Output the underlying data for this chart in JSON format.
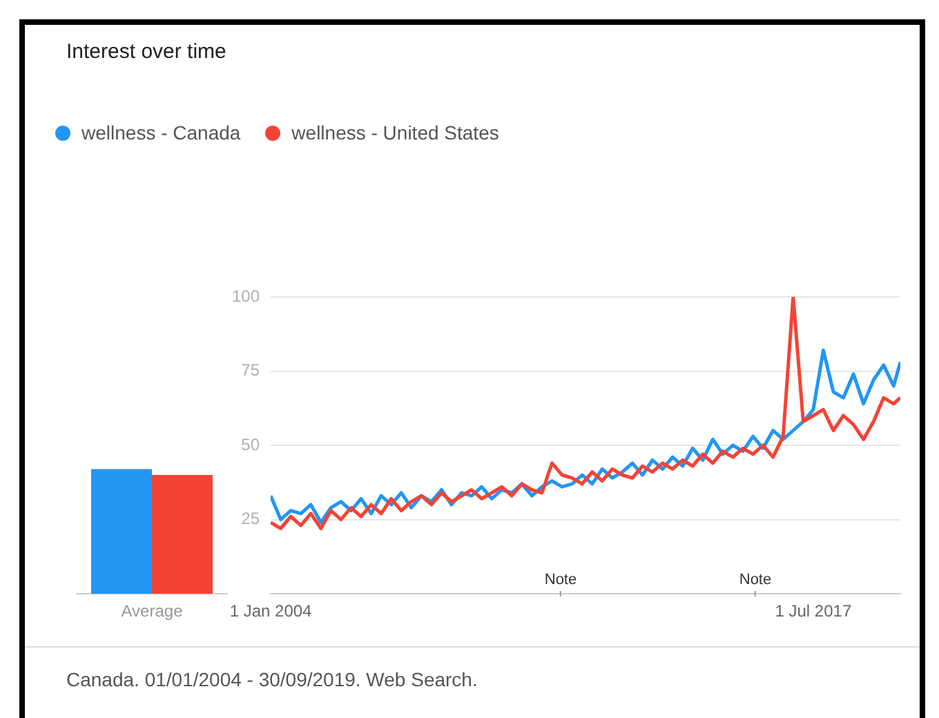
{
  "chart_data": [
    {
      "type": "line",
      "legend": "top left",
      "grid": "y",
      "marker": "none",
      "line_style": "solid",
      "x": [
        "2004-01",
        "2004-04",
        "2004-07",
        "2004-10",
        "2005-01",
        "2005-04",
        "2005-07",
        "2005-10",
        "2006-01",
        "2006-04",
        "2006-07",
        "2006-10",
        "2007-01",
        "2007-04",
        "2007-07",
        "2007-10",
        "2008-01",
        "2008-04",
        "2008-07",
        "2008-10",
        "2009-01",
        "2009-04",
        "2009-07",
        "2009-10",
        "2010-01",
        "2010-04",
        "2010-07",
        "2010-10",
        "2011-01",
        "2011-04",
        "2011-07",
        "2011-10",
        "2012-01",
        "2012-04",
        "2012-07",
        "2012-10",
        "2013-01",
        "2013-04",
        "2013-07",
        "2013-10",
        "2014-01",
        "2014-04",
        "2014-07",
        "2014-10",
        "2015-01",
        "2015-04",
        "2015-07",
        "2015-10",
        "2016-01",
        "2016-04",
        "2016-07",
        "2016-10",
        "2017-01",
        "2017-04",
        "2017-07",
        "2017-10",
        "2018-01",
        "2018-04",
        "2018-07",
        "2018-10",
        "2019-01",
        "2019-04",
        "2019-07",
        "2019-09"
      ],
      "xlim": [
        "2004-01",
        "2019-09"
      ],
      "xticks": [
        {
          "value": "2004-01",
          "label": "1 Jan 2004"
        },
        {
          "value": "2017-07",
          "label": "1 Jul 2017"
        }
      ],
      "ylim": [
        0,
        100
      ],
      "yticks": [
        25,
        50,
        75,
        100
      ],
      "series": [
        {
          "name": "wellness - Canada",
          "color": "#2196f3",
          "values": [
            33,
            25,
            28,
            27,
            30,
            24,
            29,
            31,
            28,
            32,
            27,
            33,
            30,
            34,
            29,
            33,
            31,
            35,
            30,
            34,
            33,
            36,
            32,
            35,
            34,
            37,
            33,
            36,
            38,
            36,
            37,
            40,
            37,
            42,
            39,
            41,
            44,
            40,
            45,
            42,
            46,
            43,
            49,
            45,
            52,
            47,
            50,
            48,
            53,
            49,
            55,
            52,
            55,
            58,
            62,
            82,
            68,
            66,
            74,
            64,
            72,
            77,
            70,
            78
          ]
        },
        {
          "name": "wellness - United States",
          "color": "#f44336",
          "values": [
            24,
            22,
            26,
            23,
            27,
            22,
            28,
            25,
            29,
            26,
            30,
            27,
            32,
            28,
            31,
            33,
            30,
            34,
            31,
            33,
            35,
            32,
            34,
            36,
            33,
            37,
            35,
            34,
            44,
            40,
            39,
            37,
            41,
            38,
            42,
            40,
            39,
            43,
            41,
            44,
            42,
            45,
            43,
            47,
            44,
            48,
            46,
            49,
            47,
            50,
            46,
            53,
            100,
            58,
            60,
            62,
            55,
            60,
            57,
            52,
            58,
            66,
            64,
            66
          ]
        }
      ],
      "annotations": [
        "Note",
        "Note",
        "Canada. 01/01/2004 - 30/09/2019. Web Search."
      ]
    },
    {
      "type": "bar",
      "title": "Interest over time",
      "categories": [
        "Average"
      ],
      "ylim": [
        0,
        100
      ],
      "tick_labels": "x",
      "grid": false,
      "series": [
        {
          "color": "#2196f3",
          "values": [
            42
          ]
        },
        {
          "color": "#f44336",
          "values": [
            40
          ]
        }
      ]
    }
  ]
}
